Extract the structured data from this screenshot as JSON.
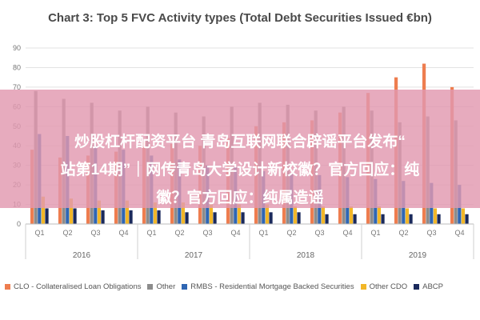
{
  "chart_data": {
    "type": "bar",
    "title": "Chart 3: Top 5 FVC Activity types (Total Debt Securities Issued €bn)",
    "xlabel": "",
    "ylabel": "",
    "ylim": [
      0,
      90
    ],
    "yticks": [
      0,
      10,
      20,
      30,
      40,
      50,
      60,
      70,
      80,
      90
    ],
    "grid": true,
    "legend_position": "bottom",
    "categories": [
      "Q1",
      "Q2",
      "Q3",
      "Q4",
      "Q1",
      "Q2",
      "Q3",
      "Q4",
      "Q1",
      "Q2",
      "Q3",
      "Q4",
      "Q1",
      "Q2",
      "Q3",
      "Q4"
    ],
    "groups": [
      {
        "label": "2016",
        "span": [
          0,
          3
        ]
      },
      {
        "label": "2017",
        "span": [
          4,
          7
        ]
      },
      {
        "label": "2018",
        "span": [
          8,
          11
        ]
      },
      {
        "label": "2019",
        "span": [
          12,
          15
        ]
      }
    ],
    "series": [
      {
        "name": "CLO - Collateralised Loan Obligations",
        "color": "#ee7d4f",
        "values": [
          38,
          34,
          35,
          37,
          42,
          41,
          40,
          44,
          50,
          52,
          53,
          57,
          67,
          75,
          82,
          70
        ]
      },
      {
        "name": "Other",
        "color": "#8c8c8c",
        "values": [
          68,
          64,
          62,
          58,
          60,
          57,
          55,
          60,
          62,
          61,
          58,
          60,
          58,
          52,
          55,
          53
        ]
      },
      {
        "name": "RMBS - Residential Mortgage Backed Securities",
        "color": "#2f66b3",
        "values": [
          46,
          45,
          40,
          38,
          35,
          33,
          30,
          29,
          27,
          26,
          25,
          24,
          23,
          22,
          21,
          20
        ]
      },
      {
        "name": "Other CDO",
        "color": "#f2b728",
        "values": [
          14,
          13,
          12,
          12,
          11,
          11,
          10,
          10,
          10,
          9,
          9,
          9,
          9,
          8,
          8,
          8
        ]
      },
      {
        "name": "ABCP",
        "color": "#1a2a5c",
        "values": [
          8,
          8,
          7,
          7,
          7,
          6,
          6,
          6,
          6,
          6,
          5,
          5,
          5,
          5,
          5,
          5
        ]
      }
    ]
  },
  "overlay": {
    "line1": "炒股杠杆配资平台 青岛互联网联合辟谣平台发布“",
    "line2": "站第14期”｜网传青岛大学设计新校徽？官方回应：纯",
    "line3": "徽？官方回应：纯属造谣"
  }
}
